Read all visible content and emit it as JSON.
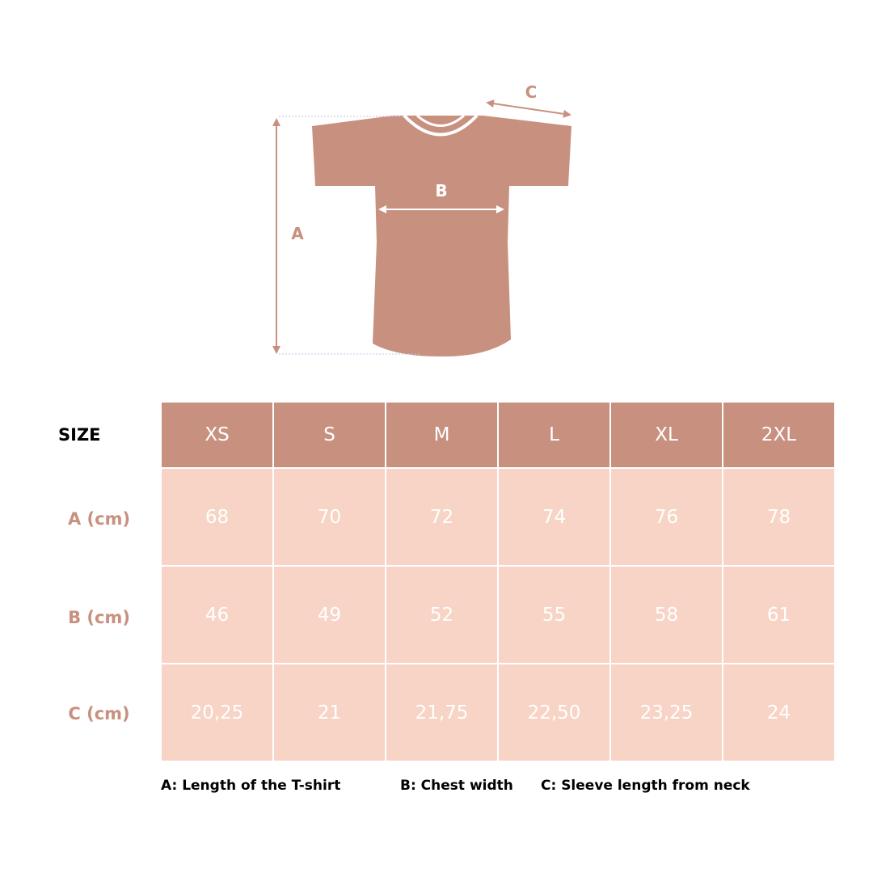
{
  "colors": {
    "accent": "#c8917f",
    "cell": "#f7d4c5",
    "text_on_cell": "#ffffff"
  },
  "diagram": {
    "label_a": "A",
    "label_b": "B",
    "label_c": "C"
  },
  "table": {
    "size_label": "SIZE",
    "sizes": [
      "XS",
      "S",
      "M",
      "L",
      "XL",
      "2XL"
    ],
    "rows": [
      {
        "label": "A (cm)",
        "values": [
          "68",
          "70",
          "72",
          "74",
          "76",
          "78"
        ]
      },
      {
        "label": "B (cm)",
        "values": [
          "46",
          "49",
          "52",
          "55",
          "58",
          "61"
        ]
      },
      {
        "label": "C (cm)",
        "values": [
          "20,25",
          "21",
          "21,75",
          "22,50",
          "23,25",
          "24"
        ]
      }
    ]
  },
  "legend": {
    "a": "A: Length of the T-shirt",
    "b": "B: Chest width",
    "c": "C: Sleeve length from neck"
  }
}
